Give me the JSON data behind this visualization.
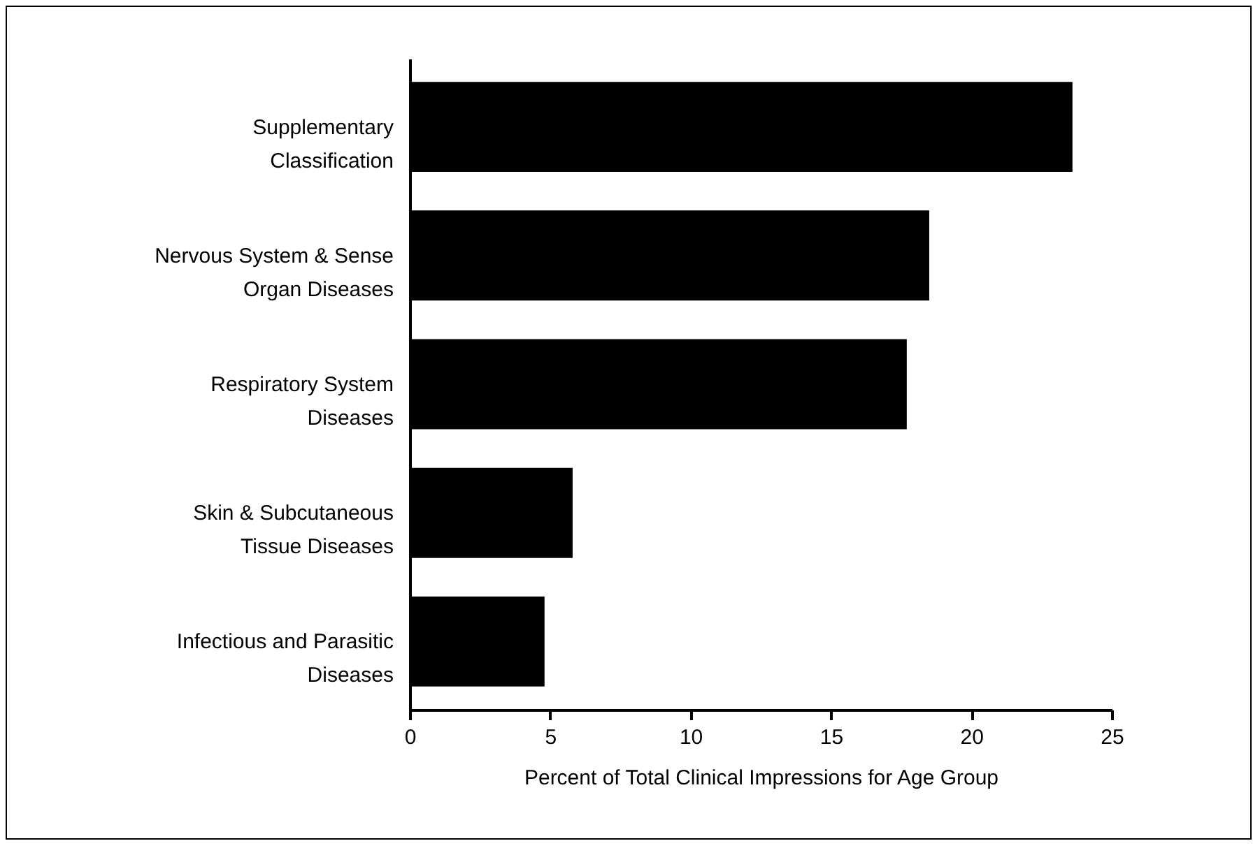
{
  "chart_data": {
    "type": "bar",
    "orientation": "horizontal",
    "xlabel": "Percent of Total Clinical Impressions for Age Group",
    "categories": [
      "Supplementary\nClassification",
      "Nervous System & Sense\nOrgan Diseases",
      "Respiratory System\nDiseases",
      "Skin & Subcutaneous\nTissue Diseases",
      "Infectious and Parasitic\nDiseases"
    ],
    "values": [
      23.6,
      18.5,
      17.7,
      5.8,
      4.8
    ],
    "color": "#000000",
    "xlim": [
      0,
      25
    ],
    "xticks": [
      0,
      5,
      10,
      15,
      20,
      25
    ]
  }
}
